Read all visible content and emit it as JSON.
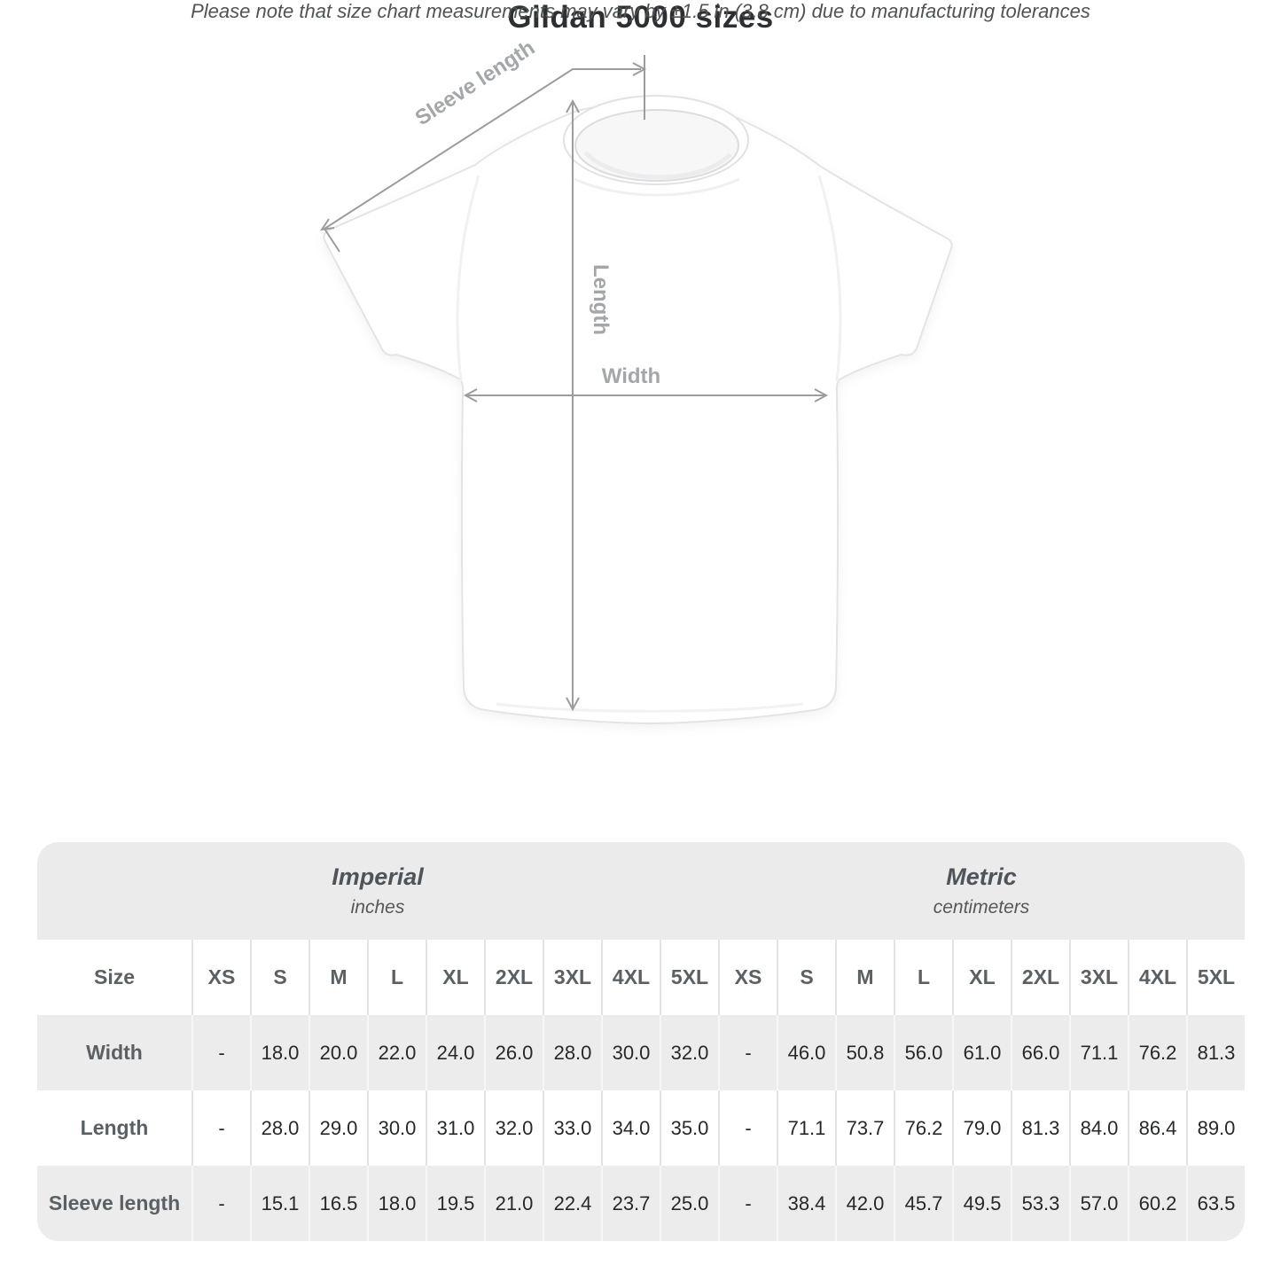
{
  "diagram": {
    "labels": {
      "sleeve": "Sleeve length",
      "length": "Length",
      "width": "Width"
    },
    "line_color": "#9a9c9e",
    "label_color": "#a3a7aa"
  },
  "title": "Gildan 5000 sizes",
  "subtitle": "Please note that size chart measurements may vary by ±1.5 in (3.8 cm) due to manufacturing tolerances",
  "table": {
    "groups": [
      {
        "name": "Imperial",
        "unit": "inches"
      },
      {
        "name": "Metric",
        "unit": "centimeters"
      }
    ],
    "size_header": "Size",
    "sizes": [
      "XS",
      "S",
      "M",
      "L",
      "XL",
      "2XL",
      "3XL",
      "4XL",
      "5XL"
    ],
    "rows": [
      {
        "label": "Width",
        "imperial": [
          "-",
          "18.0",
          "20.0",
          "22.0",
          "24.0",
          "26.0",
          "28.0",
          "30.0",
          "32.0"
        ],
        "metric": [
          "-",
          "46.0",
          "50.8",
          "56.0",
          "61.0",
          "66.0",
          "71.1",
          "76.2",
          "81.3"
        ]
      },
      {
        "label": "Length",
        "imperial": [
          "-",
          "28.0",
          "29.0",
          "30.0",
          "31.0",
          "32.0",
          "33.0",
          "34.0",
          "35.0"
        ],
        "metric": [
          "-",
          "71.1",
          "73.7",
          "76.2",
          "79.0",
          "81.3",
          "84.0",
          "86.4",
          "89.0"
        ]
      },
      {
        "label": "Sleeve length",
        "imperial": [
          "-",
          "15.1",
          "16.5",
          "18.0",
          "19.5",
          "21.0",
          "22.4",
          "23.7",
          "25.0"
        ],
        "metric": [
          "-",
          "38.4",
          "42.0",
          "45.7",
          "49.5",
          "53.3",
          "57.0",
          "60.2",
          "63.5"
        ]
      }
    ]
  }
}
